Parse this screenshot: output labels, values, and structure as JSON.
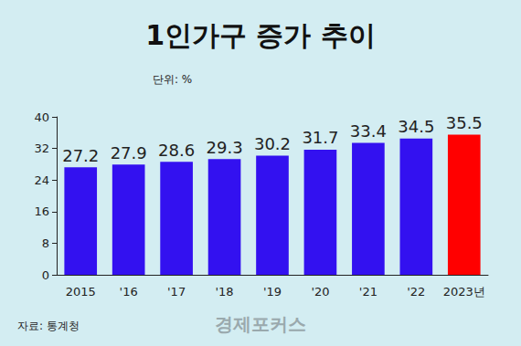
{
  "chart_data": {
    "type": "bar",
    "title": "1인가구 증가 추이",
    "subtitle": "단위: %",
    "source": "자료: 통계청",
    "watermark": "경제포커스",
    "categories": [
      "2015",
      "'16",
      "'17",
      "'18",
      "'19",
      "'20",
      "'21",
      "'22",
      "2023년"
    ],
    "values": [
      27.2,
      27.9,
      28.6,
      29.3,
      30.2,
      31.7,
      33.4,
      34.5,
      35.5
    ],
    "colors": [
      "#3311f0",
      "#3311f0",
      "#3311f0",
      "#3311f0",
      "#3311f0",
      "#3311f0",
      "#3311f0",
      "#3311f0",
      "#ff0000"
    ],
    "ylim": [
      0,
      40
    ],
    "yticks": [
      0,
      8,
      16,
      24,
      32,
      40
    ],
    "grid": false,
    "data_labels": true
  }
}
